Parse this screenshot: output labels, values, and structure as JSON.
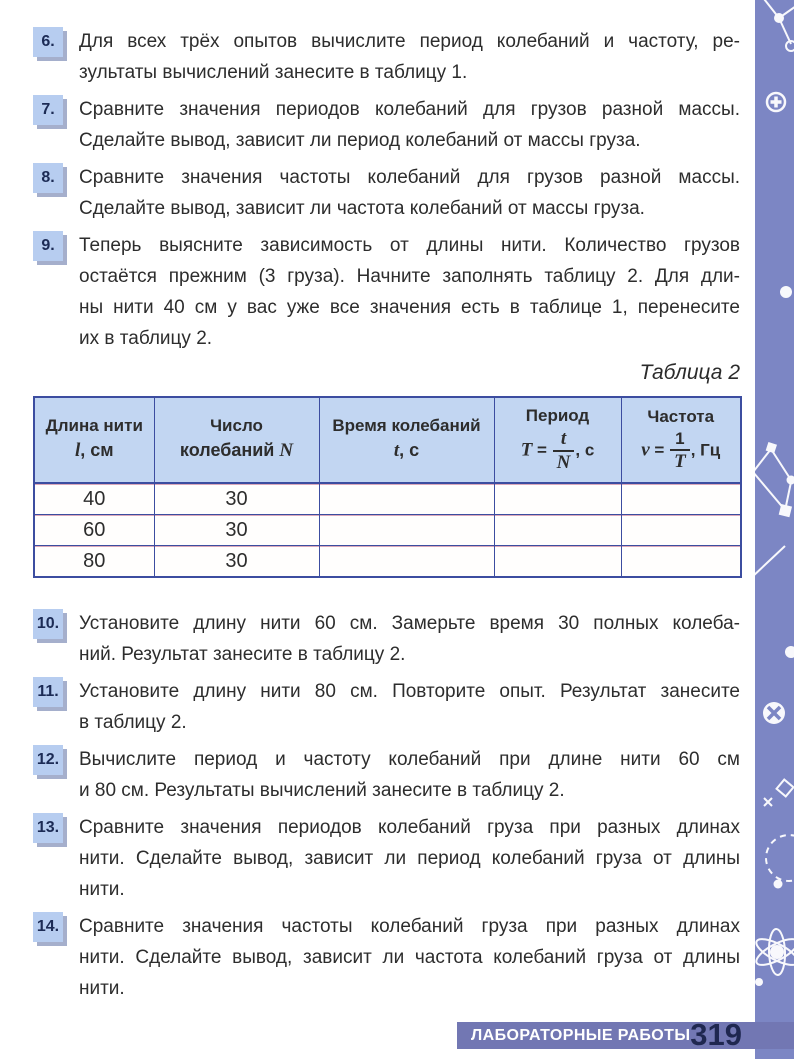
{
  "items_before_table": [
    {
      "num": "6.",
      "lines": [
        "Для всех трёх опытов вычислите период колебаний и частоту, ре-",
        "зультаты вычислений занесите в таблицу 1."
      ]
    },
    {
      "num": "7.",
      "lines": [
        "Сравните значения периодов колебаний для грузов разной массы.",
        "Сделайте вывод, зависит ли период колебаний от массы груза."
      ]
    },
    {
      "num": "8.",
      "lines": [
        "Сравните значения частоты колебаний для грузов разной массы.",
        "Сделайте вывод, зависит ли частота колебаний от массы груза."
      ]
    },
    {
      "num": "9.",
      "lines": [
        "Теперь выясните зависимость от длины нити. Количество грузов",
        "остаётся прежним (3 груза). Начните заполнять таблицу 2. Для дли-",
        "ны нити 40 см у вас уже все значения есть в таблице 1, перенесите",
        "их в таблицу 2."
      ]
    }
  ],
  "caption": "Таблица 2",
  "table": {
    "headers": [
      {
        "title": "Длина нити",
        "pre": "",
        "var": "l",
        "rest": ", см"
      },
      {
        "title": "Число",
        "pre": "колебаний ",
        "var": "N",
        "rest": ""
      },
      {
        "title": "Время колебаний",
        "pre": "",
        "var": "t",
        "rest": ", с"
      },
      {
        "title": "Период",
        "formula": {
          "lhs": "T",
          "eq": " = ",
          "num": "t",
          "den": "N",
          "unit": ", с"
        }
      },
      {
        "title": "Частота",
        "formula": {
          "lhs": "ν",
          "eq": " = ",
          "num": "1",
          "den": "T",
          "unit": ", Гц"
        }
      }
    ],
    "rows": [
      [
        "40",
        "30",
        "",
        "",
        ""
      ],
      [
        "60",
        "30",
        "",
        "",
        ""
      ],
      [
        "80",
        "30",
        "",
        "",
        ""
      ]
    ]
  },
  "items_after_table": [
    {
      "num": "10.",
      "lines": [
        "Установите длину нити 60 см. Замерьте время 30 полных колеба-",
        "ний. Результат занесите в таблицу 2."
      ]
    },
    {
      "num": "11.",
      "lines": [
        "Установите длину нити 80 см. Повторите опыт. Результат занесите",
        "в таблицу 2."
      ]
    },
    {
      "num": "12.",
      "lines": [
        "Вычислите период и частоту колебаний при длине нити 60 см",
        "и 80 см. Результаты вычислений занесите в таблицу 2."
      ]
    },
    {
      "num": "13.",
      "lines": [
        "Сравните значения периодов колебаний груза при разных длинах",
        "нити. Сделайте вывод, зависит ли период колебаний груза от длины",
        "нити."
      ]
    },
    {
      "num": "14.",
      "lines": [
        "Сравните значения частоты колебаний груза при разных длинах",
        "нити. Сделайте вывод, зависит ли частота колебаний груза от длины",
        "нити."
      ]
    }
  ],
  "footer": {
    "label": "ЛАБОРАТОРНЫЕ РАБОТЫ",
    "page_number": "319"
  },
  "colors": {
    "badge_bg": "#b7cdf0",
    "badge_shadow": "#a5afcc",
    "table_header_bg": "#c2d6f2",
    "table_border": "#3c4da0",
    "row_separator_pink": "#dba8ba",
    "footer_bar": "#7277b3",
    "page_number": "#1f2750",
    "sidebar": "#7c86c4"
  }
}
